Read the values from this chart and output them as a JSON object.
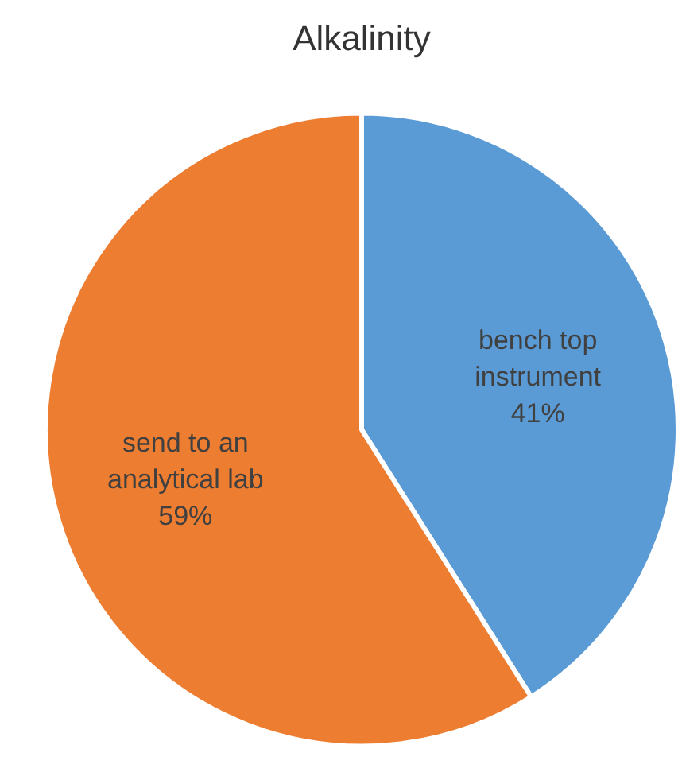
{
  "chart_data": {
    "type": "pie",
    "title": "Alkalinity",
    "categories": [
      "bench top instrument",
      "send to an analytical lab"
    ],
    "values": [
      41,
      59
    ],
    "colors": [
      "#5b9bd5",
      "#ed7d31"
    ],
    "value_labels": [
      "41%",
      "59%"
    ],
    "legend": false
  }
}
